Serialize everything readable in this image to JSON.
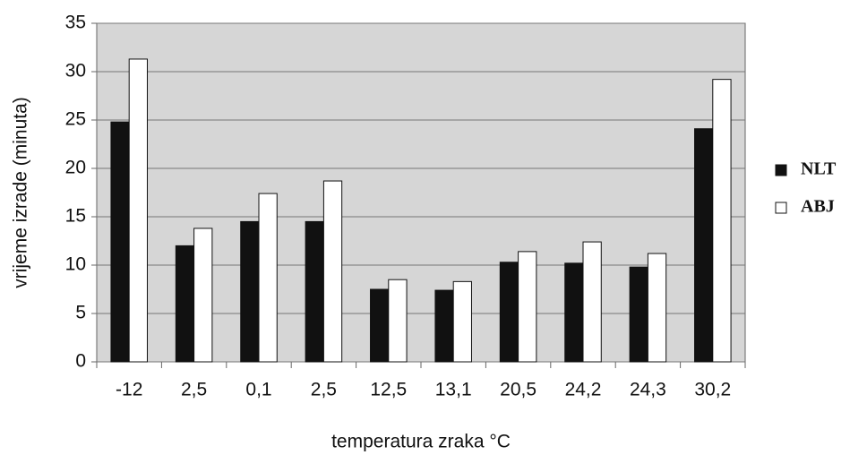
{
  "chart_data": {
    "type": "bar",
    "xlabel": "temperatura zraka  °C",
    "ylabel": "vrijeme izrade  (minuta)",
    "categories": [
      "-12",
      "2,5",
      "0,1",
      "2,5",
      "12,5",
      "13,1",
      "20,5",
      "24,2",
      "24,3",
      "30,2"
    ],
    "series": [
      {
        "name": "NLT",
        "color": "#111111",
        "values": [
          24.8,
          12,
          14.5,
          14.5,
          7.5,
          7.4,
          10.3,
          10.2,
          9.8,
          24.1
        ]
      },
      {
        "name": "ABJ",
        "color": "#ffffff",
        "values": [
          31.3,
          13.8,
          17.4,
          18.7,
          8.5,
          8.3,
          11.4,
          12.4,
          11.2,
          29.2
        ]
      }
    ],
    "ylim": [
      0,
      35
    ],
    "yticks": [
      0,
      5,
      10,
      15,
      20,
      25,
      30,
      35
    ],
    "grid": true,
    "legend": "right"
  }
}
